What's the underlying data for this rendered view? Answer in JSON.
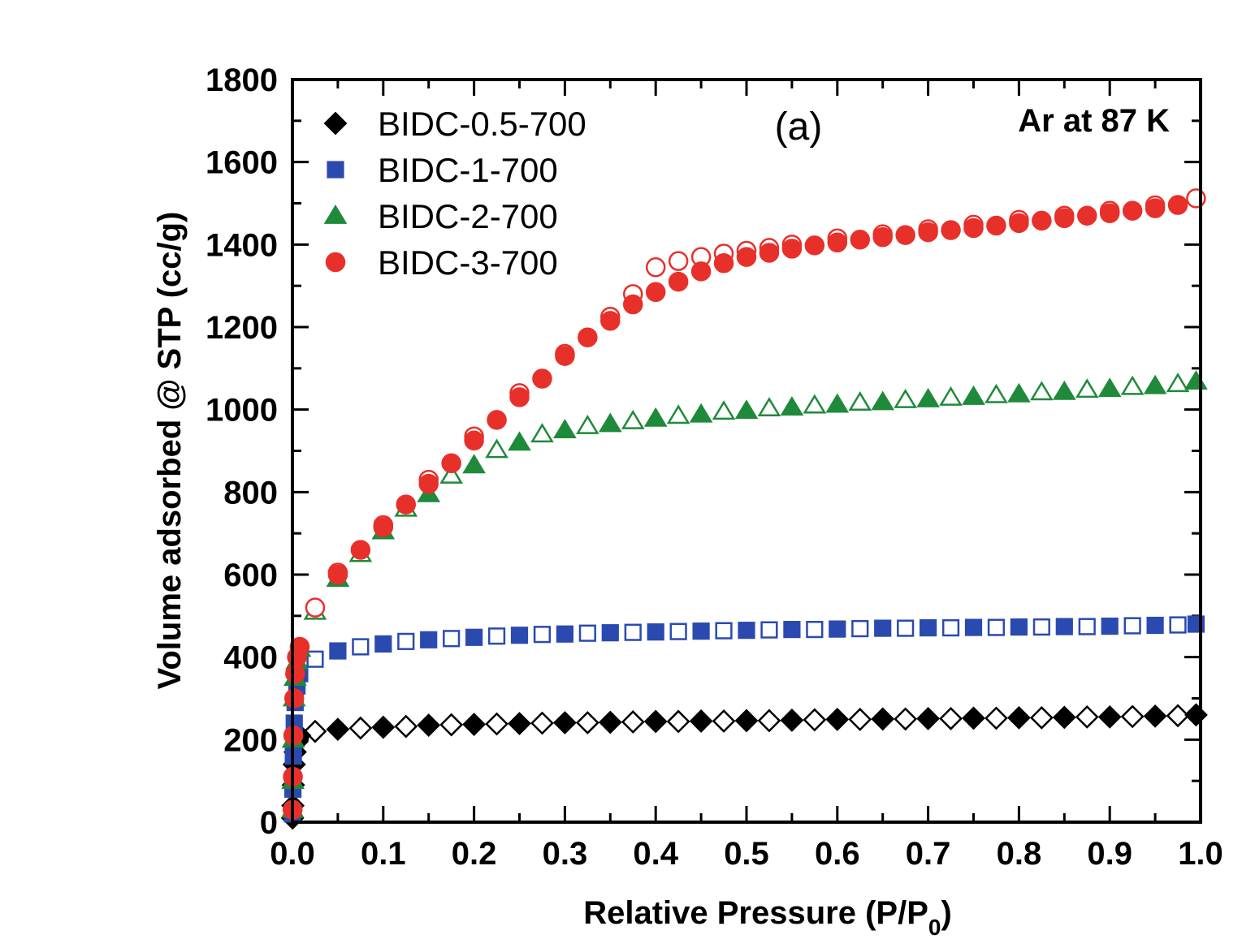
{
  "chart_data": {
    "type": "scatter",
    "panel_label": "(a)",
    "annotation": "Ar at 87 K",
    "xlabel_main": "Relative Pressure (P/P",
    "xlabel_sub": "0",
    "xlabel_close": ")",
    "ylabel": "Volume adsorbed @ STP (cc/g)",
    "xlim": [
      0,
      1.0
    ],
    "ylim": [
      0,
      1800
    ],
    "xticks": [
      "0.0",
      "0.1",
      "0.2",
      "0.3",
      "0.4",
      "0.5",
      "0.6",
      "0.7",
      "0.8",
      "0.9",
      "1.0"
    ],
    "yticks": [
      "0",
      "200",
      "400",
      "600",
      "800",
      "1000",
      "1200",
      "1400",
      "1600",
      "1800"
    ],
    "legend_position": "top-left",
    "notes": "filled markers = adsorption, open markers = desorption",
    "series": [
      {
        "name": "BIDC-0.5-700",
        "marker": "diamond",
        "color": "#000000",
        "adsorption": {
          "x": [
            0.0002,
            0.0005,
            0.001,
            0.002,
            0.003,
            0.005,
            0.008,
            0.05,
            0.1,
            0.15,
            0.2,
            0.25,
            0.3,
            0.35,
            0.4,
            0.45,
            0.5,
            0.55,
            0.6,
            0.65,
            0.7,
            0.75,
            0.8,
            0.85,
            0.9,
            0.95,
            0.995
          ],
          "y": [
            10,
            40,
            90,
            140,
            170,
            195,
            210,
            225,
            230,
            235,
            237,
            239,
            241,
            242,
            244,
            245,
            246,
            247,
            249,
            250,
            251,
            252,
            253,
            254,
            255,
            257,
            260
          ]
        },
        "desorption": {
          "x": [
            0.025,
            0.075,
            0.125,
            0.175,
            0.225,
            0.275,
            0.325,
            0.375,
            0.425,
            0.475,
            0.525,
            0.575,
            0.625,
            0.675,
            0.725,
            0.775,
            0.825,
            0.875,
            0.925,
            0.975
          ],
          "y": [
            220,
            228,
            232,
            236,
            238,
            240,
            241,
            243,
            244,
            245,
            246,
            248,
            249,
            250,
            251,
            252,
            253,
            255,
            256,
            258
          ]
        }
      },
      {
        "name": "BIDC-1-700",
        "marker": "square",
        "color": "#2a4ab0",
        "adsorption": {
          "x": [
            0.0002,
            0.0005,
            0.001,
            0.002,
            0.003,
            0.005,
            0.008,
            0.05,
            0.1,
            0.15,
            0.2,
            0.25,
            0.3,
            0.35,
            0.4,
            0.45,
            0.5,
            0.55,
            0.6,
            0.65,
            0.7,
            0.75,
            0.8,
            0.85,
            0.9,
            0.95,
            0.995
          ],
          "y": [
            20,
            80,
            160,
            240,
            290,
            330,
            360,
            415,
            432,
            442,
            448,
            453,
            456,
            459,
            461,
            463,
            465,
            467,
            468,
            470,
            471,
            472,
            473,
            474,
            475,
            477,
            480
          ]
        },
        "desorption": {
          "x": [
            0.025,
            0.075,
            0.125,
            0.175,
            0.225,
            0.275,
            0.325,
            0.375,
            0.425,
            0.475,
            0.525,
            0.575,
            0.625,
            0.675,
            0.725,
            0.775,
            0.825,
            0.875,
            0.925,
            0.975
          ],
          "y": [
            395,
            425,
            438,
            445,
            451,
            455,
            458,
            460,
            462,
            464,
            466,
            467,
            469,
            470,
            471,
            472,
            473,
            474,
            476,
            478
          ]
        }
      },
      {
        "name": "BIDC-2-700",
        "marker": "triangle",
        "color": "#1e8a3a",
        "adsorption": {
          "x": [
            0.0002,
            0.0005,
            0.001,
            0.002,
            0.003,
            0.005,
            0.008,
            0.05,
            0.1,
            0.15,
            0.2,
            0.25,
            0.3,
            0.35,
            0.4,
            0.45,
            0.5,
            0.55,
            0.6,
            0.65,
            0.7,
            0.75,
            0.8,
            0.85,
            0.9,
            0.95,
            0.995
          ],
          "y": [
            30,
            100,
            200,
            300,
            350,
            390,
            420,
            590,
            705,
            795,
            865,
            920,
            950,
            965,
            978,
            988,
            997,
            1005,
            1012,
            1018,
            1025,
            1031,
            1037,
            1043,
            1050,
            1057,
            1068
          ]
        },
        "desorption": {
          "x": [
            0.025,
            0.075,
            0.125,
            0.175,
            0.225,
            0.275,
            0.325,
            0.375,
            0.425,
            0.475,
            0.525,
            0.575,
            0.625,
            0.675,
            0.725,
            0.775,
            0.825,
            0.875,
            0.925,
            0.975
          ],
          "y": [
            510,
            650,
            760,
            840,
            902,
            940,
            960,
            972,
            985,
            995,
            1003,
            1010,
            1017,
            1023,
            1029,
            1035,
            1042,
            1048,
            1055,
            1062
          ]
        }
      },
      {
        "name": "BIDC-3-700",
        "marker": "circle",
        "color": "#e8302a",
        "adsorption": {
          "x": [
            0.0002,
            0.0005,
            0.001,
            0.002,
            0.003,
            0.005,
            0.008,
            0.05,
            0.075,
            0.1,
            0.125,
            0.15,
            0.175,
            0.2,
            0.225,
            0.25,
            0.275,
            0.3,
            0.325,
            0.35,
            0.375,
            0.4,
            0.425,
            0.45,
            0.475,
            0.5,
            0.525,
            0.55,
            0.575,
            0.6,
            0.625,
            0.65,
            0.675,
            0.7,
            0.725,
            0.75,
            0.775,
            0.8,
            0.825,
            0.85,
            0.875,
            0.9,
            0.925,
            0.95,
            0.975
          ],
          "y": [
            30,
            110,
            210,
            300,
            360,
            400,
            425,
            600,
            660,
            715,
            770,
            820,
            870,
            925,
            975,
            1030,
            1075,
            1130,
            1175,
            1215,
            1255,
            1285,
            1310,
            1335,
            1355,
            1370,
            1380,
            1390,
            1398,
            1405,
            1412,
            1418,
            1423,
            1430,
            1435,
            1440,
            1446,
            1452,
            1458,
            1464,
            1470,
            1476,
            1482,
            1488,
            1496
          ]
        },
        "desorption": {
          "x": [
            0.025,
            0.05,
            0.1,
            0.15,
            0.2,
            0.25,
            0.3,
            0.35,
            0.375,
            0.4,
            0.425,
            0.45,
            0.475,
            0.5,
            0.525,
            0.55,
            0.6,
            0.65,
            0.7,
            0.75,
            0.8,
            0.85,
            0.9,
            0.95,
            0.995
          ],
          "y": [
            520,
            605,
            720,
            830,
            935,
            1040,
            1135,
            1225,
            1280,
            1345,
            1360,
            1370,
            1378,
            1385,
            1392,
            1400,
            1415,
            1425,
            1437,
            1448,
            1460,
            1470,
            1482,
            1495,
            1512
          ]
        }
      }
    ]
  }
}
